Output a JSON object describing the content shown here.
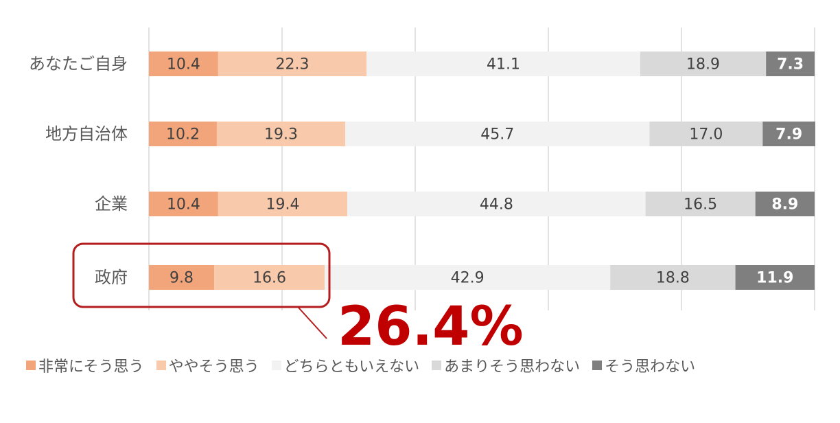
{
  "chart_data": {
    "type": "stacked-bar-horizontal",
    "categories": [
      "あなたご自身",
      "地方自治体",
      "企業",
      "政府"
    ],
    "series": [
      {
        "name": "非常にそう思う",
        "color": "#f2a57a",
        "values": [
          10.4,
          10.2,
          10.4,
          9.8
        ]
      },
      {
        "name": "ややそう思う",
        "color": "#f8c9ab",
        "values": [
          22.3,
          19.3,
          19.4,
          16.6
        ]
      },
      {
        "name": "どちらともいえない",
        "color": "#f2f2f2",
        "values": [
          41.1,
          45.7,
          44.8,
          42.9
        ]
      },
      {
        "name": "あまりそう思わない",
        "color": "#d9d9d9",
        "values": [
          18.9,
          17.0,
          16.5,
          18.8
        ],
        "value_labels": [
          "18.9",
          "17.0",
          "16.5",
          "18.8"
        ]
      },
      {
        "name": "そう思わない",
        "color": "#7f7f7f",
        "values": [
          7.3,
          7.9,
          8.9,
          11.9
        ]
      }
    ],
    "xlim": [
      0,
      100
    ],
    "xticks": [
      0,
      20,
      40,
      60,
      80,
      100
    ],
    "grid": true,
    "annotation": "26.4%"
  }
}
